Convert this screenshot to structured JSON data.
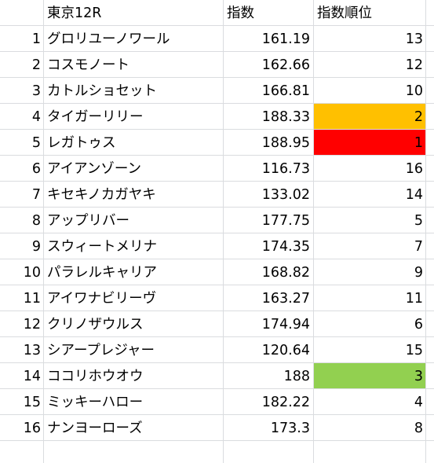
{
  "header": {
    "race": "東京12R",
    "index": "指数",
    "rank": "指数順位"
  },
  "rows": [
    {
      "no": "1",
      "name": "グロリユーノワール",
      "index": "161.19",
      "rank": "13"
    },
    {
      "no": "2",
      "name": "コスモノート",
      "index": "162.66",
      "rank": "12"
    },
    {
      "no": "3",
      "name": "カトルショセット",
      "index": "166.81",
      "rank": "10"
    },
    {
      "no": "4",
      "name": "タイガーリリー",
      "index": "188.33",
      "rank": "2",
      "rank_fill": "#ffc000"
    },
    {
      "no": "5",
      "name": "レガトゥス",
      "index": "188.95",
      "rank": "1",
      "rank_fill": "#ff0000"
    },
    {
      "no": "6",
      "name": "アイアンゾーン",
      "index": "116.73",
      "rank": "16"
    },
    {
      "no": "7",
      "name": "キセキノカガヤキ",
      "index": "133.02",
      "rank": "14"
    },
    {
      "no": "8",
      "name": "アップリバー",
      "index": "177.75",
      "rank": "5"
    },
    {
      "no": "9",
      "name": "スウィートメリナ",
      "index": "174.35",
      "rank": "7"
    },
    {
      "no": "10",
      "name": "パラレルキャリア",
      "index": "168.82",
      "rank": "9"
    },
    {
      "no": "11",
      "name": "アイワナビリーヴ",
      "index": "163.27",
      "rank": "11"
    },
    {
      "no": "12",
      "name": "クリノザウルス",
      "index": "174.94",
      "rank": "6"
    },
    {
      "no": "13",
      "name": "シアープレジャー",
      "index": "120.64",
      "rank": "15"
    },
    {
      "no": "14",
      "name": "ココリホウオウ",
      "index": "188",
      "rank": "3",
      "rank_fill": "#92d050"
    },
    {
      "no": "15",
      "name": "ミッキーハロー",
      "index": "182.22",
      "rank": "4"
    },
    {
      "no": "16",
      "name": "ナンヨーローズ",
      "index": "173.3",
      "rank": "8"
    }
  ],
  "colors": {
    "gridline": "#dadcdf",
    "rank_1": "#ff0000",
    "rank_2": "#ffc000",
    "rank_3": "#92d050"
  }
}
